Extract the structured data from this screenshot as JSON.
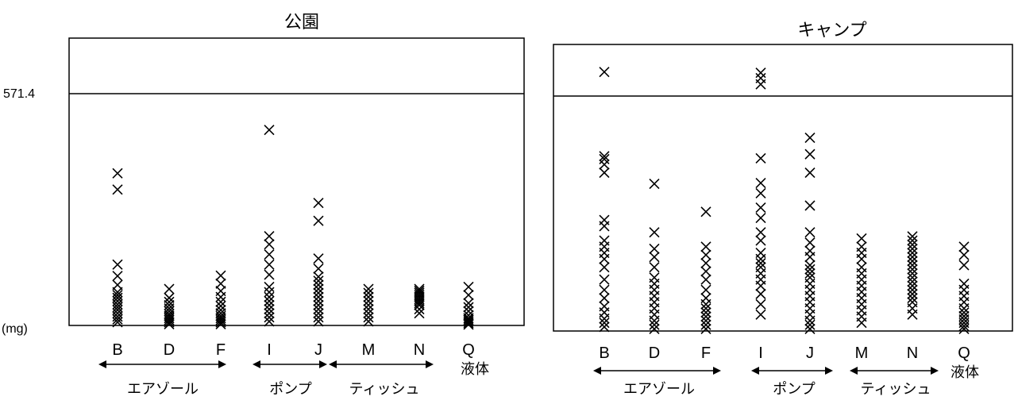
{
  "chart_data": [
    {
      "type": "scatter",
      "title": "公園",
      "ylabel": "(mg)",
      "reference_line": 571.4,
      "reference_label": "571.4",
      "ylim": [
        0,
        700
      ],
      "grid": false,
      "categories": [
        "B",
        "D",
        "F",
        "I",
        "J",
        "M",
        "N",
        "Q"
      ],
      "groups": [
        {
          "label": "エアゾール",
          "categories": [
            "B",
            "D",
            "F"
          ]
        },
        {
          "label": "ポンプ",
          "categories": [
            "I",
            "J"
          ]
        },
        {
          "label": "ティッシュ",
          "categories": [
            "M",
            "N"
          ]
        },
        {
          "label": "液体",
          "categories": [
            "Q"
          ]
        }
      ],
      "points": {
        "B": [
          8,
          15,
          22,
          30,
          38,
          45,
          52,
          60,
          68,
          75,
          82,
          100,
          122,
          150,
          335,
          375
        ],
        "D": [
          3,
          8,
          13,
          18,
          23,
          28,
          35,
          42,
          50,
          58,
          68,
          90
        ],
        "F": [
          3,
          8,
          13,
          18,
          23,
          30,
          38,
          48,
          58,
          70,
          85,
          103,
          123
        ],
        "I": [
          10,
          20,
          30,
          40,
          50,
          60,
          70,
          82,
          95,
          125,
          150,
          175,
          200,
          220,
          482
        ],
        "J": [
          10,
          20,
          30,
          40,
          50,
          60,
          70,
          80,
          90,
          100,
          110,
          120,
          140,
          165,
          258,
          302
        ],
        "M": [
          10,
          20,
          30,
          40,
          50,
          60,
          70,
          80,
          90
        ],
        "N": [
          30,
          40,
          50,
          55,
          60,
          65,
          70,
          75,
          80,
          85,
          90
        ],
        "Q": [
          2,
          6,
          10,
          14,
          18,
          25,
          35,
          45,
          55,
          75,
          95
        ]
      }
    },
    {
      "type": "scatter",
      "title": "キャンプ",
      "ylabel": "",
      "reference_line": 571.4,
      "reference_label": "",
      "ylim": [
        0,
        700
      ],
      "grid": false,
      "categories": [
        "B",
        "D",
        "F",
        "I",
        "J",
        "M",
        "N",
        "Q"
      ],
      "groups": [
        {
          "label": "エアゾール",
          "categories": [
            "B",
            "D",
            "F"
          ]
        },
        {
          "label": "ポンプ",
          "categories": [
            "I",
            "J"
          ]
        },
        {
          "label": "ティッシュ",
          "categories": [
            "M",
            "N"
          ]
        },
        {
          "label": "液体",
          "categories": [
            "Q"
          ]
        }
      ],
      "points": {
        "B": [
          10,
          20,
          30,
          45,
          60,
          80,
          100,
          125,
          155,
          175,
          190,
          205,
          220,
          255,
          270,
          385,
          405,
          418,
          425,
          630
        ],
        "D": [
          5,
          15,
          25,
          40,
          55,
          70,
          85,
          100,
          115,
          130,
          155,
          180,
          200,
          240,
          358
        ],
        "F": [
          5,
          15,
          25,
          35,
          45,
          55,
          65,
          80,
          100,
          125,
          145,
          165,
          185,
          205,
          290
        ],
        "I": [
          40,
          65,
          90,
          110,
          125,
          140,
          155,
          165,
          175,
          190,
          220,
          240,
          275,
          300,
          335,
          360,
          420,
          600,
          615,
          628
        ],
        "J": [
          5,
          15,
          25,
          40,
          55,
          70,
          85,
          100,
          115,
          130,
          140,
          150,
          160,
          180,
          195,
          215,
          240,
          305,
          385,
          430,
          470
        ],
        "M": [
          20,
          35,
          50,
          65,
          80,
          95,
          110,
          125,
          140,
          155,
          175,
          190,
          205,
          225
        ],
        "N": [
          40,
          55,
          70,
          80,
          90,
          100,
          110,
          120,
          130,
          140,
          150,
          160,
          170,
          180,
          190,
          200,
          210,
          220,
          230
        ],
        "Q": [
          5,
          12,
          20,
          28,
          36,
          45,
          55,
          70,
          85,
          100,
          115,
          160,
          185,
          205
        ]
      }
    }
  ]
}
